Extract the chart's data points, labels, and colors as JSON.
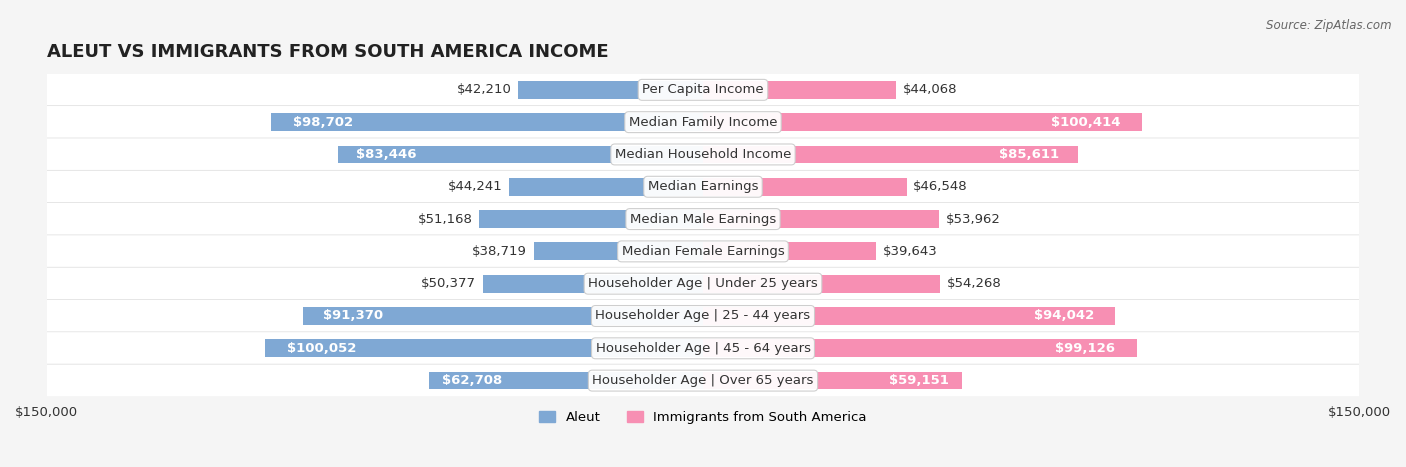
{
  "title": "ALEUT VS IMMIGRANTS FROM SOUTH AMERICA INCOME",
  "source": "Source: ZipAtlas.com",
  "categories": [
    "Per Capita Income",
    "Median Family Income",
    "Median Household Income",
    "Median Earnings",
    "Median Male Earnings",
    "Median Female Earnings",
    "Householder Age | Under 25 years",
    "Householder Age | 25 - 44 years",
    "Householder Age | 45 - 64 years",
    "Householder Age | Over 65 years"
  ],
  "aleut_values": [
    42210,
    98702,
    83446,
    44241,
    51168,
    38719,
    50377,
    91370,
    100052,
    62708
  ],
  "immigrant_values": [
    44068,
    100414,
    85611,
    46548,
    53962,
    39643,
    54268,
    94042,
    99126,
    59151
  ],
  "aleut_labels": [
    "$42,210",
    "$98,702",
    "$83,446",
    "$44,241",
    "$51,168",
    "$38,719",
    "$50,377",
    "$91,370",
    "$100,052",
    "$62,708"
  ],
  "immigrant_labels": [
    "$44,068",
    "$100,414",
    "$85,611",
    "$46,548",
    "$53,962",
    "$39,643",
    "$54,268",
    "$94,042",
    "$99,126",
    "$59,151"
  ],
  "aleut_color": "#7fa8d4",
  "aleut_color_dark": "#5b8fc7",
  "immigrant_color": "#f78fb3",
  "immigrant_color_dark": "#f06090",
  "max_value": 150000,
  "background_color": "#f5f5f5",
  "row_bg_color": "#ffffff",
  "bar_height": 0.55,
  "label_fontsize": 9.5,
  "title_fontsize": 13,
  "category_fontsize": 9.5
}
